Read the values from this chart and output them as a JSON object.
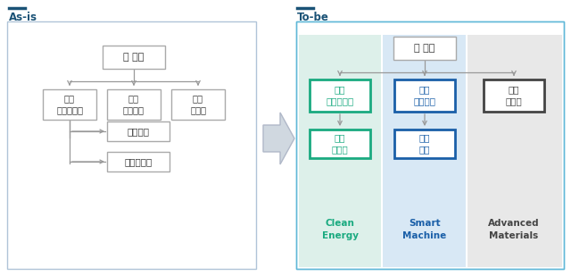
{
  "bg_color": "#ffffff",
  "title_as_is": "As-is",
  "title_to_be": "To-be",
  "title_color": "#1a5276",
  "title_bar_color": "#1a5276",
  "asis_root": "Ⓡ 두산",
  "asis_children": [
    "두산\n에너빌리티",
    "두산\n로보틹스",
    "두산\n테스나"
  ],
  "asis_sub_first": [
    "두산밥켓",
    "두산퓨열셀"
  ],
  "tobe_root": "Ⓡ 두산",
  "tobe_columns": [
    {
      "label": "두산\n에너빌리티",
      "sub": "두산\n퓨열셀",
      "bg_color": "#ddf0ea",
      "border_color": "#1aaa80",
      "text_color": "#1aaa80",
      "cat_label": "Clean\nEnergy",
      "cat_color": "#1aaa80"
    },
    {
      "label": "두산\n로보틹스",
      "sub": "두산\n밥켓",
      "bg_color": "#d8e8f5",
      "border_color": "#1a5fa8",
      "text_color": "#1a5fa8",
      "cat_label": "Smart\nMachine",
      "cat_color": "#1a5fa8"
    },
    {
      "label": "두산\n테스나",
      "sub": null,
      "bg_color": "#e8e8e8",
      "border_color": "#444444",
      "text_color": "#444444",
      "cat_label": "Advanced\nMaterials",
      "cat_color": "#444444"
    }
  ],
  "line_color": "#999999",
  "box_edge_color": "#999999",
  "outer_border_asis": "#b0c4d8",
  "outer_border_tobe": "#60b8d8"
}
